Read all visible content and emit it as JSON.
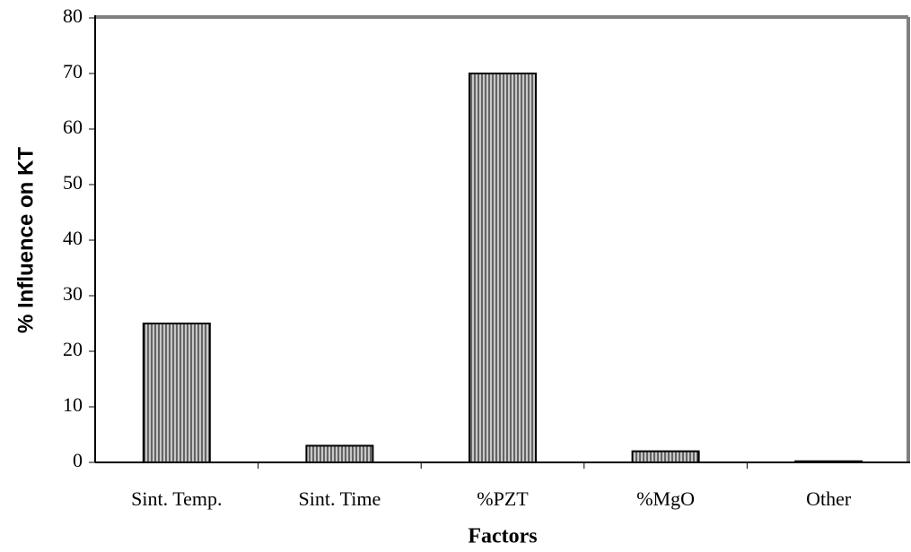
{
  "chart_data": {
    "type": "bar",
    "x_label": "Factors",
    "y_label": "% Influence on KT",
    "categories": [
      "Sint. Temp.",
      "Sint. Time",
      "%PZT",
      "%MgO",
      "Other"
    ],
    "values": [
      25,
      3,
      70,
      2,
      0.2
    ],
    "color": "#b0b0b0",
    "ylim": [
      0,
      80
    ],
    "yticks": [
      0,
      10,
      20,
      30,
      40,
      50,
      60,
      70,
      80
    ]
  }
}
